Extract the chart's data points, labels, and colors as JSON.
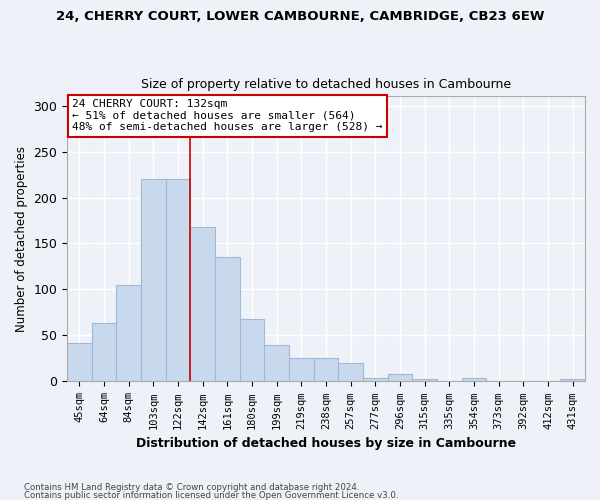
{
  "title_line1": "24, CHERRY COURT, LOWER CAMBOURNE, CAMBRIDGE, CB23 6EW",
  "title_line2": "Size of property relative to detached houses in Cambourne",
  "xlabel": "Distribution of detached houses by size in Cambourne",
  "ylabel": "Number of detached properties",
  "categories": [
    "45sqm",
    "64sqm",
    "84sqm",
    "103sqm",
    "122sqm",
    "142sqm",
    "161sqm",
    "180sqm",
    "199sqm",
    "219sqm",
    "238sqm",
    "257sqm",
    "277sqm",
    "296sqm",
    "315sqm",
    "335sqm",
    "354sqm",
    "373sqm",
    "392sqm",
    "412sqm",
    "431sqm"
  ],
  "values": [
    42,
    64,
    105,
    220,
    220,
    168,
    135,
    68,
    40,
    25,
    25,
    20,
    4,
    8,
    3,
    0,
    4,
    0,
    0,
    0,
    3
  ],
  "bar_color": "#c8d9ed",
  "bar_edge_color": "#a0b8d8",
  "annotation_text": "24 CHERRY COURT: 132sqm\n← 51% of detached houses are smaller (564)\n48% of semi-detached houses are larger (528) →",
  "annotation_box_color": "#ffffff",
  "annotation_box_edge_color": "#cc0000",
  "vline_x": 4.5,
  "vline_color": "#cc0000",
  "ylim": [
    0,
    310
  ],
  "yticks": [
    0,
    50,
    100,
    150,
    200,
    250,
    300
  ],
  "footer_line1": "Contains HM Land Registry data © Crown copyright and database right 2024.",
  "footer_line2": "Contains public sector information licensed under the Open Government Licence v3.0.",
  "bg_color": "#eef2f8",
  "grid_color": "#ffffff"
}
